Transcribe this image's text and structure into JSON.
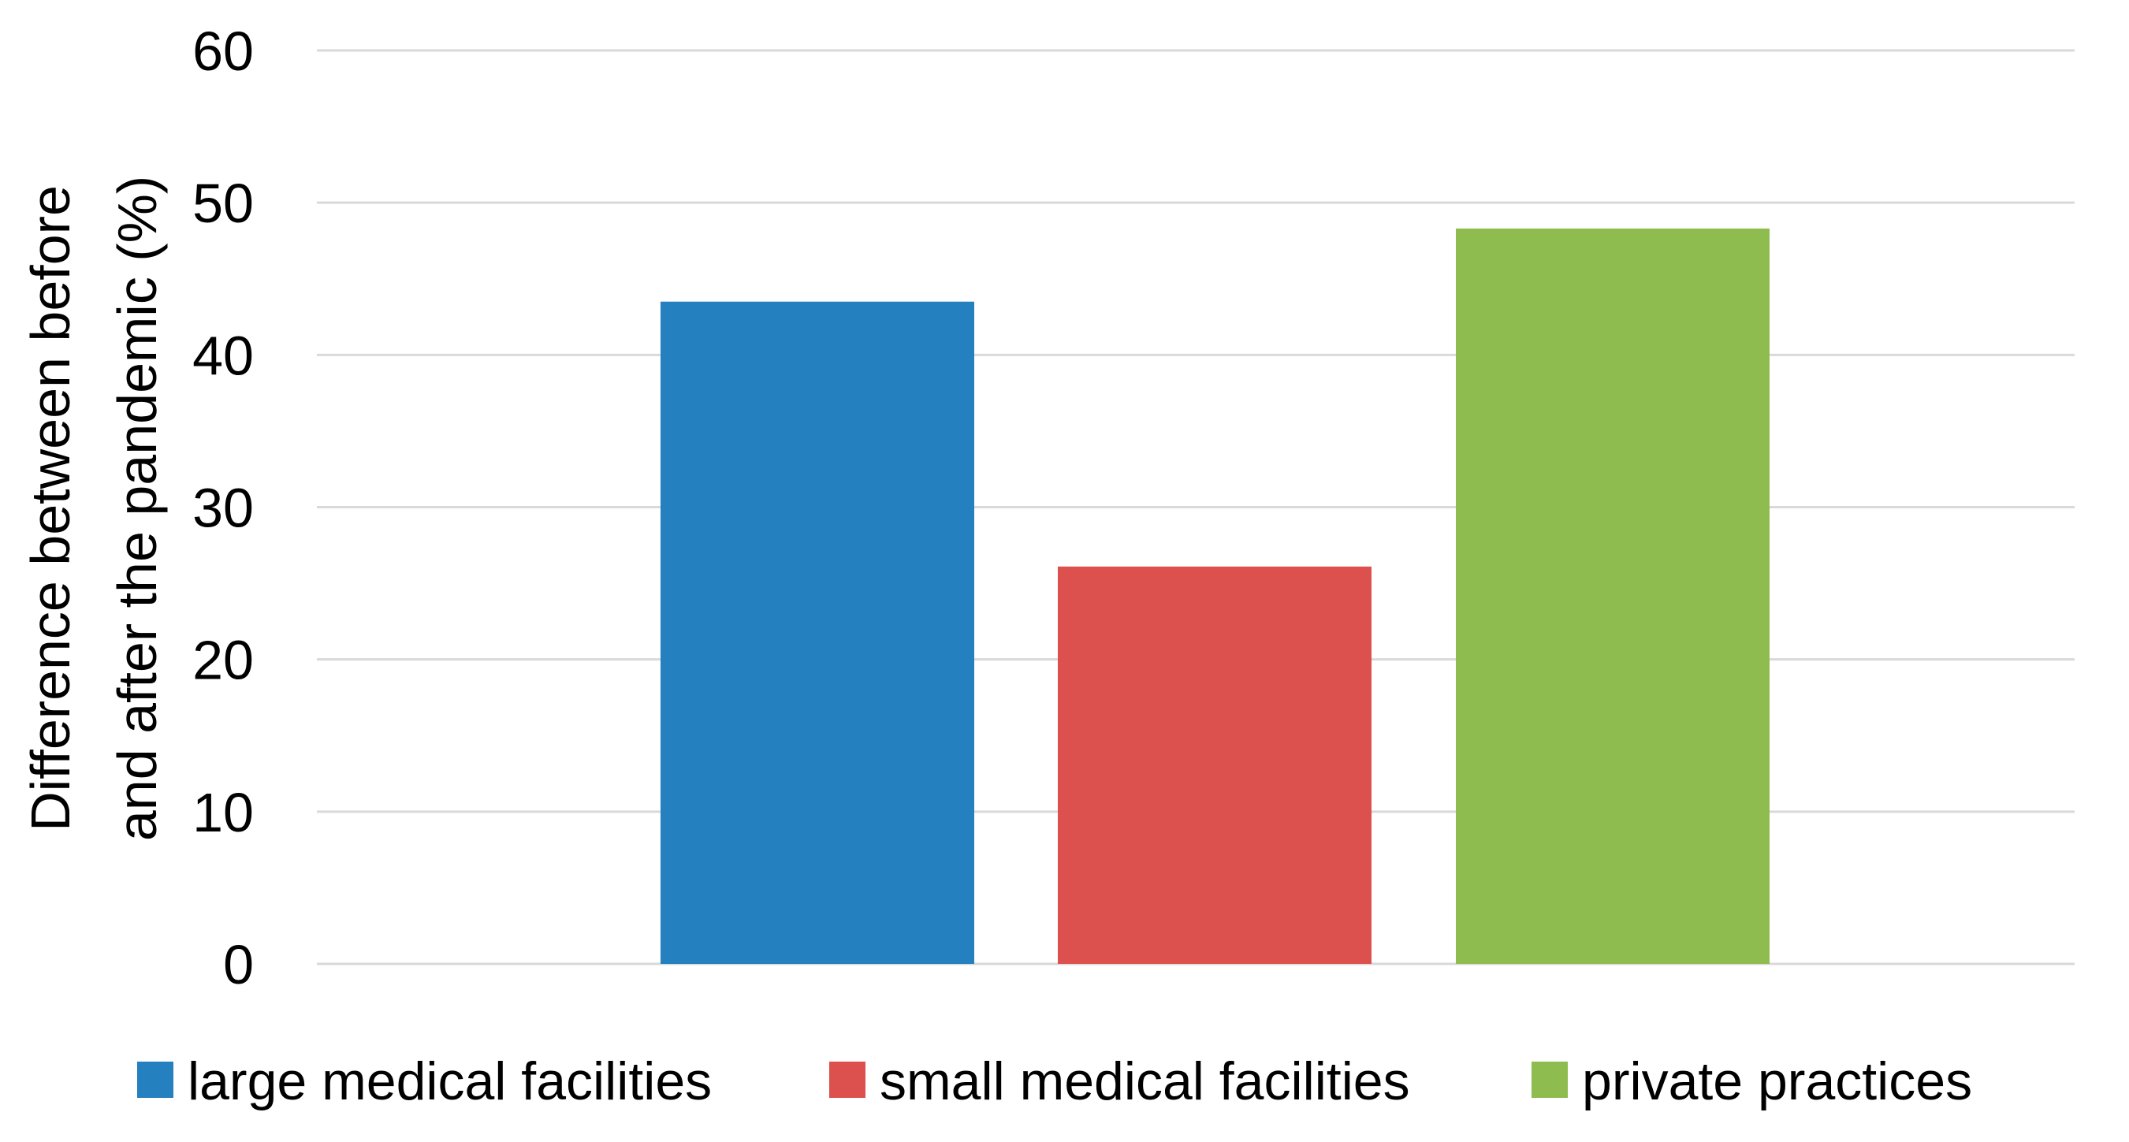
{
  "chart_data": {
    "type": "bar",
    "title": "",
    "xlabel": "",
    "ylabel_lines": [
      "Difference between before",
      "and after the pandemic (%)"
    ],
    "ylim": [
      0,
      60
    ],
    "yticks": [
      0,
      10,
      20,
      30,
      40,
      50,
      60
    ],
    "grid": true,
    "legend_position": "bottom",
    "series": [
      {
        "name": "large medical facilities",
        "value": 43.5,
        "color": "#2480be"
      },
      {
        "name": "small medical facilities",
        "value": 26.1,
        "color": "#dc514e"
      },
      {
        "name": "private practices",
        "value": 48.3,
        "color": "#8fbc4f"
      }
    ]
  }
}
